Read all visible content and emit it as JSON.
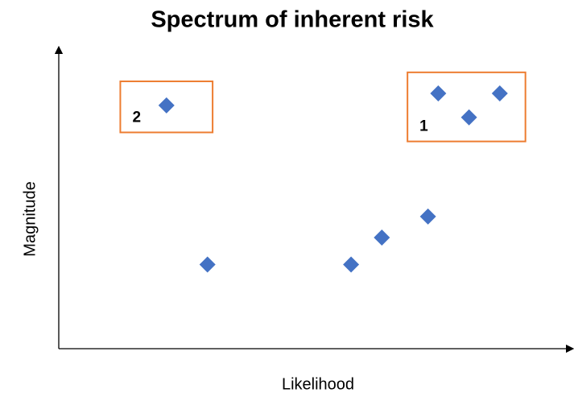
{
  "chart_data": {
    "type": "scatter",
    "title": "Spectrum of inherent risk",
    "x_label": "Likelihood",
    "y_label": "Magnitude",
    "x": [
      21,
      29,
      57,
      63,
      72,
      74,
      80,
      86
    ],
    "values": [
      81,
      28,
      28,
      37,
      44,
      85,
      77,
      85
    ],
    "color": "#4472c4",
    "xlim": [
      0,
      100
    ],
    "ylim": [
      0,
      100
    ],
    "annotations": [
      {
        "label": "2",
        "x": [
          12,
          30
        ],
        "y": [
          72,
          89
        ],
        "color": "#ed7d31"
      },
      {
        "label": "1",
        "x": [
          68,
          91
        ],
        "y": [
          69,
          92
        ],
        "color": "#ed7d31"
      }
    ]
  }
}
